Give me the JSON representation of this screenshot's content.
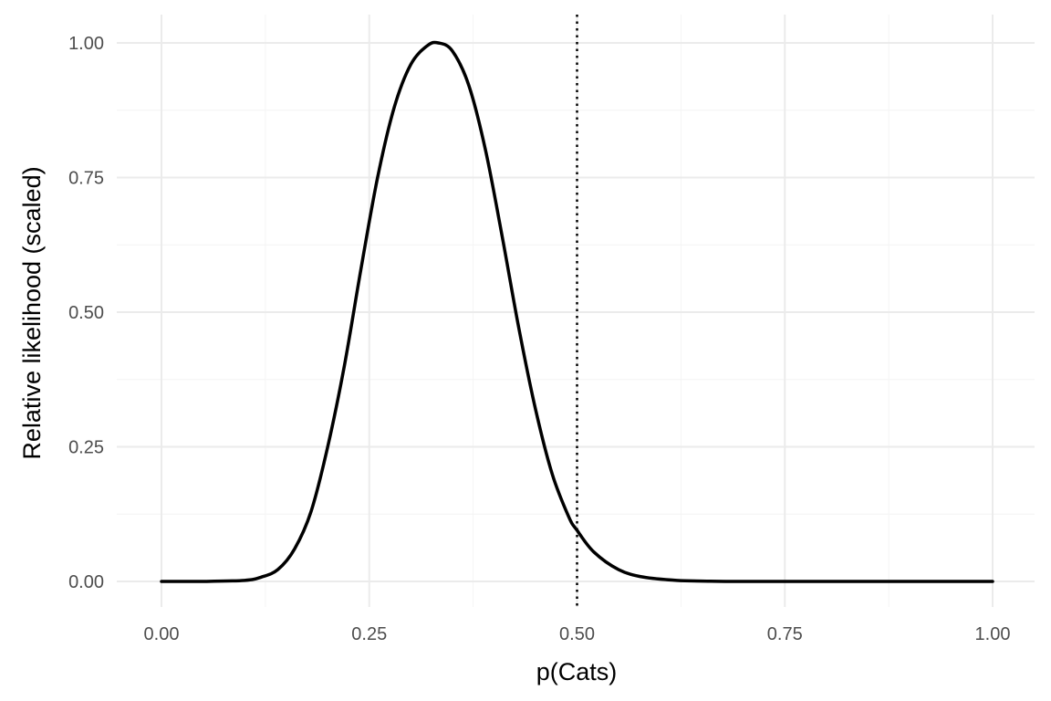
{
  "chart_data": {
    "type": "line",
    "title": "",
    "xlabel": "p(Cats)",
    "ylabel": "Relative likelihood (scaled)",
    "xlim": [
      0,
      1
    ],
    "ylim": [
      0,
      1
    ],
    "x_ticks": [
      "0.00",
      "0.25",
      "0.50",
      "0.75",
      "1.00"
    ],
    "y_ticks": [
      "0.00",
      "0.25",
      "0.50",
      "0.75",
      "1.00"
    ],
    "grid": true,
    "legend": "none",
    "series": [
      {
        "x": [
          0.0,
          0.05,
          0.1,
          0.12,
          0.14,
          0.16,
          0.18,
          0.2,
          0.22,
          0.24,
          0.26,
          0.28,
          0.3,
          0.32,
          0.333,
          0.35,
          0.37,
          0.39,
          0.41,
          0.43,
          0.45,
          0.47,
          0.49,
          0.5,
          0.52,
          0.55,
          0.58,
          0.62,
          0.66,
          0.7,
          0.8,
          0.9,
          1.0
        ],
        "y": [
          0.0,
          0.0,
          0.002,
          0.008,
          0.022,
          0.06,
          0.13,
          0.25,
          0.4,
          0.58,
          0.75,
          0.88,
          0.96,
          0.995,
          1.0,
          0.985,
          0.92,
          0.8,
          0.64,
          0.47,
          0.32,
          0.2,
          0.12,
          0.095,
          0.055,
          0.022,
          0.008,
          0.002,
          0.0005,
          0.0,
          0.0,
          0.0,
          0.0
        ],
        "color": "#000000"
      }
    ],
    "reference_lines": [
      {
        "axis": "x",
        "value": 0.5,
        "style": "dotted",
        "color": "#000000"
      }
    ]
  },
  "colors": {
    "major_grid": "#ebebeb",
    "minor_grid": "#f4f4f4",
    "tick_text": "#4d4d4d",
    "title_text": "#000000"
  }
}
